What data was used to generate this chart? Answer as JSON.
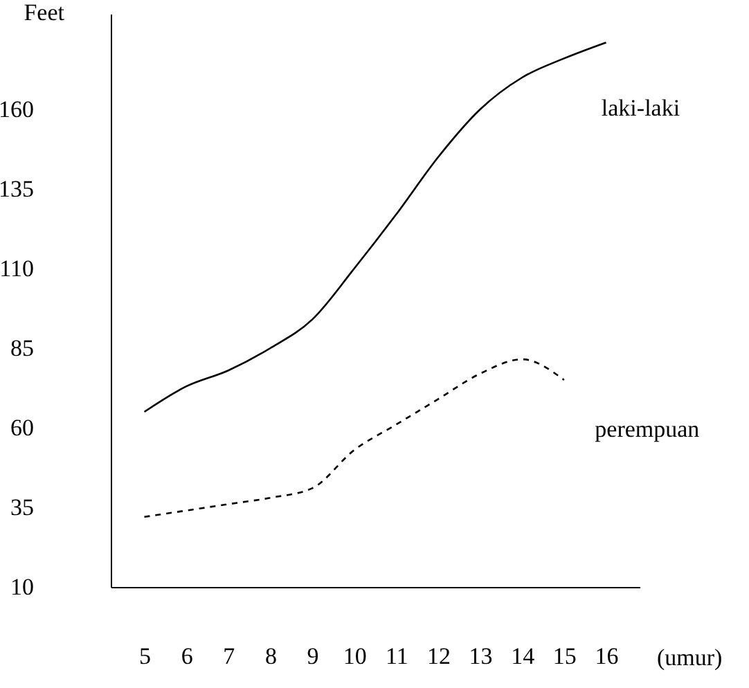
{
  "chart_data": {
    "type": "line",
    "ylabel": "Feet",
    "xlabel": "(umur)",
    "categories": [
      "5",
      "6",
      "7",
      "8",
      "9",
      "10",
      "11",
      "12",
      "13",
      "14",
      "15",
      "16"
    ],
    "series": [
      {
        "name": "laki-laki",
        "color": "#000000",
        "line_style": "solid",
        "values": [
          65,
          73,
          78,
          85,
          94,
          110,
          127,
          145,
          160,
          170,
          176,
          181
        ]
      },
      {
        "name": "perempuan",
        "color": "#000000",
        "line_style": "dashed",
        "values": [
          32,
          34,
          36,
          38,
          41,
          53,
          61,
          69,
          77,
          81.5,
          75,
          null
        ]
      }
    ],
    "ylim": [
      10,
      190
    ],
    "yticks": [
      10,
      35,
      60,
      85,
      110,
      135,
      160
    ],
    "grid": false,
    "legend": false,
    "marker": "none"
  }
}
